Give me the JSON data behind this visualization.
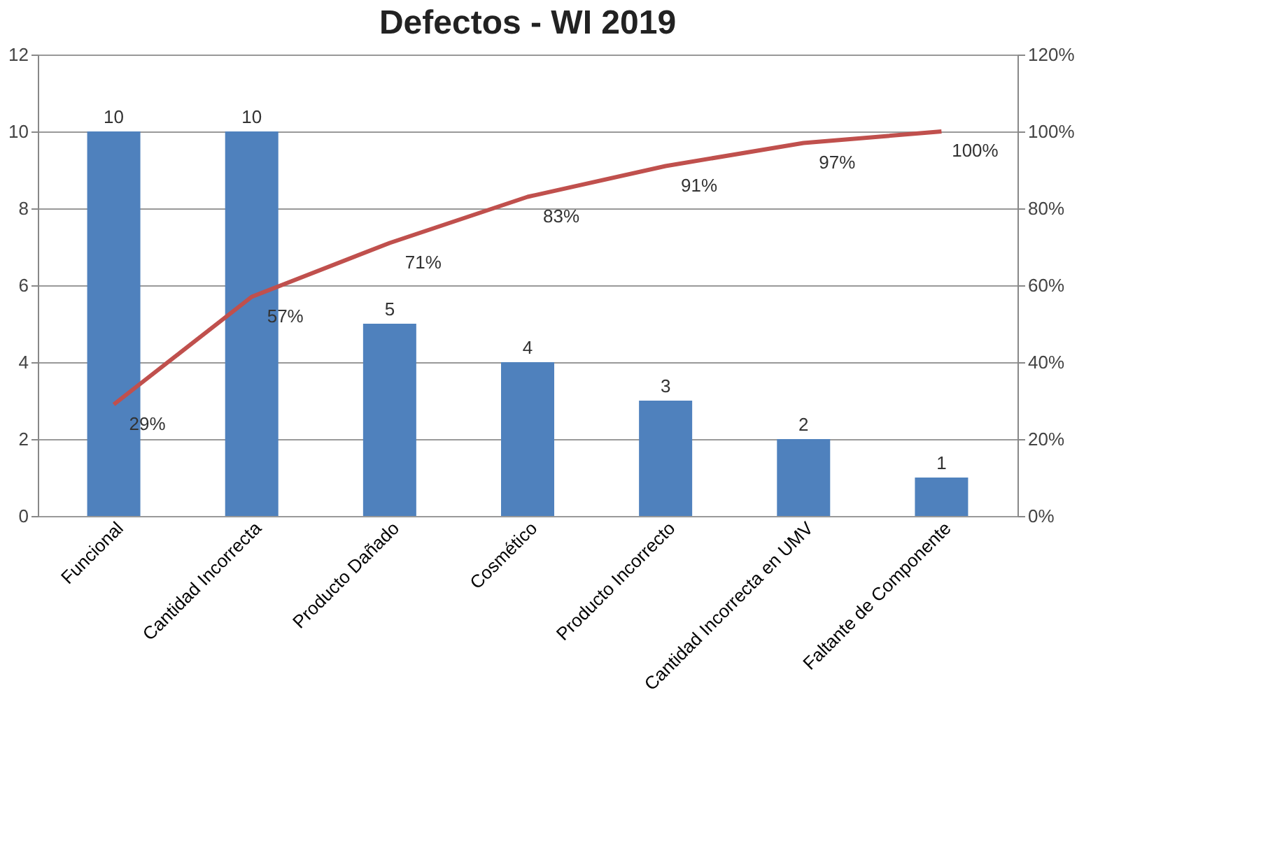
{
  "chart_data": {
    "type": "bar",
    "title": "Defectos - WI 2019",
    "categories": [
      "Funcional",
      "Cantidad Incorrecta",
      "Producto Dañado",
      "Cosmético",
      "Producto Incorrecto",
      "Cantidad Incorrecta en UMV",
      "Faltante de Componente"
    ],
    "series": [
      {
        "color": "#4f81bd",
        "values": [
          10,
          10,
          5,
          4,
          3,
          2,
          1
        ],
        "data_labels": true
      },
      {
        "type": "line",
        "axis": "y2",
        "color": "#c0504d",
        "values": [
          29,
          57,
          71,
          83,
          91,
          97,
          100
        ],
        "value_labels": [
          "29%",
          "57%",
          "71%",
          "83%",
          "91%",
          "97%",
          "100%"
        ]
      }
    ],
    "ylim": [
      0,
      12
    ],
    "yticks": [
      0,
      2,
      4,
      6,
      8,
      10,
      12
    ],
    "y2lim": [
      0,
      120
    ],
    "y2ticks": [
      {
        "value": 0,
        "label": "0%"
      },
      {
        "value": 20,
        "label": "20%"
      },
      {
        "value": 40,
        "label": "40%"
      },
      {
        "value": 60,
        "label": "60%"
      },
      {
        "value": 80,
        "label": "80%"
      },
      {
        "value": 100,
        "label": "100%"
      },
      {
        "value": 120,
        "label": "120%"
      }
    ],
    "grid": "y",
    "marker": "none",
    "line_style": "solid"
  }
}
